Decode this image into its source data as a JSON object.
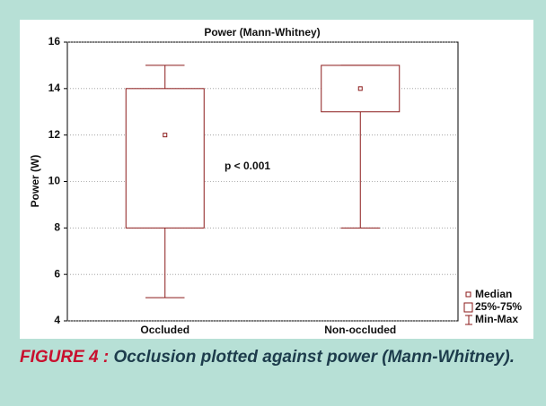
{
  "chart_data": {
    "type": "box",
    "title": "Power (Mann-Whitney)",
    "y_label": "Power (W)",
    "categories": [
      "Occluded",
      "Non-occluded"
    ],
    "median": [
      12,
      14
    ],
    "q1": [
      8,
      13
    ],
    "q3": [
      14,
      15
    ],
    "min": [
      5,
      8
    ],
    "max": [
      15,
      15
    ],
    "color": "#8b1a1a",
    "ylim": [
      4,
      16
    ],
    "yticks": [
      4,
      6,
      8,
      10,
      12,
      14,
      16
    ],
    "grid": true,
    "annotation": "p < 0.001",
    "legend": [
      "Median",
      "25%-75%",
      "Min-Max"
    ],
    "legend_position": "lower right"
  },
  "caption": {
    "label": "FIGURE 4 :",
    "text": "Occlusion plotted against power (Mann-Whitney)."
  }
}
